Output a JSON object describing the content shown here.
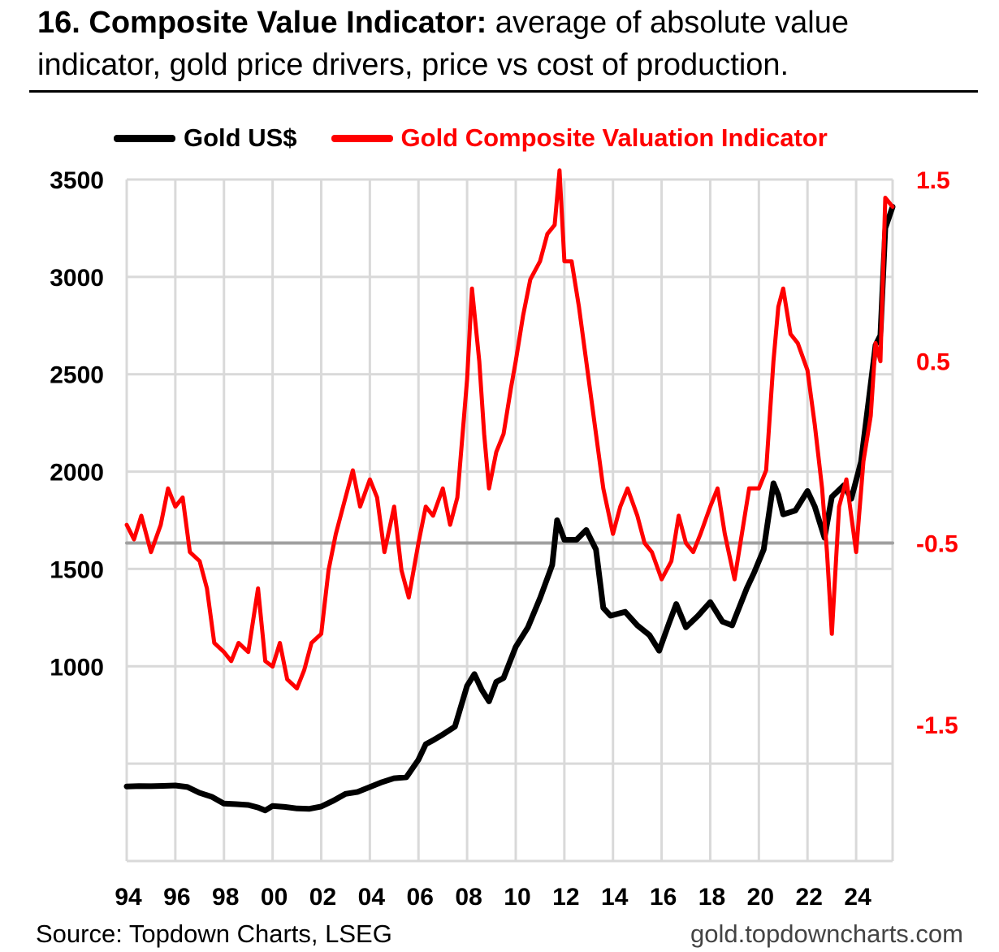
{
  "title": {
    "bold": "16. Composite Value Indicator:",
    "rest": " average of absolute value indicator, gold price drivers, price vs cost of production."
  },
  "source": "Source: Topdown Charts, LSEG",
  "website": "gold.topdowncharts.com",
  "colors": {
    "gold": "#000000",
    "indicator": "#ff0000",
    "zero_line": "#a0a0a0",
    "grid": "#d9d9d9"
  },
  "chart_data": {
    "type": "line",
    "title": "16. Composite Value Indicator: average of absolute value indicator, gold price drivers, price vs cost of production.",
    "x_tick_labels": [
      "94",
      "96",
      "98",
      "00",
      "02",
      "04",
      "06",
      "08",
      "10",
      "12",
      "14",
      "16",
      "18",
      "20",
      "22",
      "24"
    ],
    "x_tick_years": [
      1994,
      1996,
      1998,
      2000,
      2002,
      2004,
      2006,
      2008,
      2010,
      2012,
      2014,
      2016,
      2018,
      2020,
      2022,
      2024
    ],
    "xlim": [
      1994,
      2025.5
    ],
    "left_axis": {
      "ticks": [
        "3500",
        "3000",
        "2500",
        "2000",
        "1500",
        "1000"
      ],
      "tick_values": [
        3500,
        3000,
        2500,
        2000,
        1500,
        1000
      ],
      "ylim": [
        0,
        3500
      ]
    },
    "right_axis": {
      "ticks": [
        "1.5",
        "0.5",
        "-0.5",
        "-1.5"
      ],
      "tick_values": [
        1.5,
        0.5,
        -0.5,
        -1.5
      ],
      "ylim": [
        -1.5,
        1.5
      ]
    },
    "grid": true,
    "legend_position": "top",
    "series": [
      {
        "name": "Gold US$",
        "axis": "left",
        "color": "#000000",
        "x": [
          1994.0,
          1994.5,
          1995.0,
          1995.5,
          1996.0,
          1996.5,
          1997.0,
          1997.5,
          1998.0,
          1998.5,
          1999.0,
          1999.4,
          1999.7,
          2000.0,
          2000.5,
          2001.0,
          2001.5,
          2002.0,
          2002.5,
          2003.0,
          2003.5,
          2004.0,
          2004.5,
          2005.0,
          2005.5,
          2006.0,
          2006.3,
          2006.6,
          2007.0,
          2007.5,
          2008.0,
          2008.3,
          2008.6,
          2008.9,
          2009.2,
          2009.5,
          2010.0,
          2010.5,
          2011.0,
          2011.5,
          2011.7,
          2012.0,
          2012.5,
          2012.9,
          2013.3,
          2013.6,
          2013.9,
          2014.5,
          2015.0,
          2015.5,
          2015.9,
          2016.3,
          2016.6,
          2017.0,
          2017.5,
          2018.0,
          2018.5,
          2018.9,
          2019.5,
          2019.8,
          2020.2,
          2020.6,
          2020.8,
          2021.0,
          2021.5,
          2022.0,
          2022.3,
          2022.7,
          2023.0,
          2023.5,
          2023.8,
          2024.2,
          2024.5,
          2024.8,
          2025.0,
          2025.2,
          2025.5
        ],
        "y": [
          383,
          385,
          384,
          386,
          388,
          380,
          350,
          330,
          295,
          292,
          288,
          275,
          260,
          283,
          278,
          270,
          268,
          280,
          310,
          345,
          355,
          380,
          405,
          425,
          430,
          520,
          600,
          620,
          650,
          690,
          900,
          960,
          880,
          820,
          920,
          940,
          1100,
          1200,
          1350,
          1520,
          1750,
          1650,
          1650,
          1700,
          1600,
          1300,
          1260,
          1280,
          1210,
          1160,
          1080,
          1220,
          1320,
          1200,
          1260,
          1330,
          1230,
          1210,
          1400,
          1480,
          1600,
          1940,
          1880,
          1780,
          1800,
          1900,
          1820,
          1660,
          1870,
          1930,
          1860,
          2050,
          2350,
          2650,
          2700,
          3250,
          3360
        ]
      },
      {
        "name": "Gold Composite Valuation Indicator",
        "axis": "right",
        "color": "#ff0000",
        "x": [
          1994.0,
          1994.3,
          1994.6,
          1995.0,
          1995.4,
          1995.7,
          1996.0,
          1996.3,
          1996.6,
          1997.0,
          1997.3,
          1997.6,
          1998.0,
          1998.3,
          1998.6,
          1999.0,
          1999.4,
          1999.7,
          2000.0,
          2000.3,
          2000.6,
          2001.0,
          2001.3,
          2001.6,
          2002.0,
          2002.3,
          2002.6,
          2003.0,
          2003.3,
          2003.6,
          2004.0,
          2004.3,
          2004.6,
          2005.0,
          2005.3,
          2005.6,
          2006.0,
          2006.3,
          2006.6,
          2007.0,
          2007.3,
          2007.6,
          2008.0,
          2008.2,
          2008.5,
          2008.7,
          2008.9,
          2009.2,
          2009.5,
          2009.8,
          2010.0,
          2010.3,
          2010.6,
          2011.0,
          2011.3,
          2011.6,
          2011.8,
          2012.0,
          2012.3,
          2012.6,
          2012.9,
          2013.3,
          2013.6,
          2014.0,
          2014.3,
          2014.6,
          2015.0,
          2015.3,
          2015.6,
          2016.0,
          2016.4,
          2016.7,
          2017.0,
          2017.3,
          2017.6,
          2018.0,
          2018.3,
          2018.6,
          2019.0,
          2019.3,
          2019.6,
          2020.0,
          2020.3,
          2020.6,
          2020.8,
          2021.0,
          2021.3,
          2021.6,
          2022.0,
          2022.3,
          2022.6,
          2022.8,
          2023.0,
          2023.3,
          2023.6,
          2024.0,
          2024.3,
          2024.6,
          2024.8,
          2025.0,
          2025.2,
          2025.5
        ],
        "y": [
          -0.4,
          -0.48,
          -0.35,
          -0.55,
          -0.4,
          -0.2,
          -0.3,
          -0.25,
          -0.55,
          -0.6,
          -0.75,
          -1.05,
          -1.1,
          -1.15,
          -1.05,
          -1.1,
          -0.75,
          -1.15,
          -1.18,
          -1.05,
          -1.25,
          -1.3,
          -1.2,
          -1.05,
          -1.0,
          -0.65,
          -0.45,
          -0.25,
          -0.1,
          -0.3,
          -0.15,
          -0.25,
          -0.55,
          -0.3,
          -0.65,
          -0.8,
          -0.5,
          -0.3,
          -0.35,
          -0.2,
          -0.4,
          -0.25,
          0.4,
          0.9,
          0.5,
          0.1,
          -0.2,
          0.0,
          0.1,
          0.35,
          0.5,
          0.75,
          0.95,
          1.05,
          1.2,
          1.25,
          1.55,
          1.05,
          1.05,
          0.8,
          0.5,
          0.1,
          -0.2,
          -0.45,
          -0.3,
          -0.2,
          -0.35,
          -0.5,
          -0.55,
          -0.7,
          -0.6,
          -0.35,
          -0.5,
          -0.55,
          -0.45,
          -0.3,
          -0.2,
          -0.45,
          -0.7,
          -0.45,
          -0.2,
          -0.2,
          -0.1,
          0.5,
          0.8,
          0.9,
          0.65,
          0.6,
          0.45,
          0.15,
          -0.2,
          -0.55,
          -1.0,
          -0.3,
          -0.15,
          -0.55,
          -0.05,
          0.2,
          0.6,
          0.5,
          1.4,
          1.35
        ]
      },
      {
        "name": "",
        "axis": "right",
        "color": "#a0a0a0",
        "x": [
          1994.0,
          2025.5
        ],
        "y": [
          -0.5,
          -0.5
        ]
      }
    ]
  }
}
